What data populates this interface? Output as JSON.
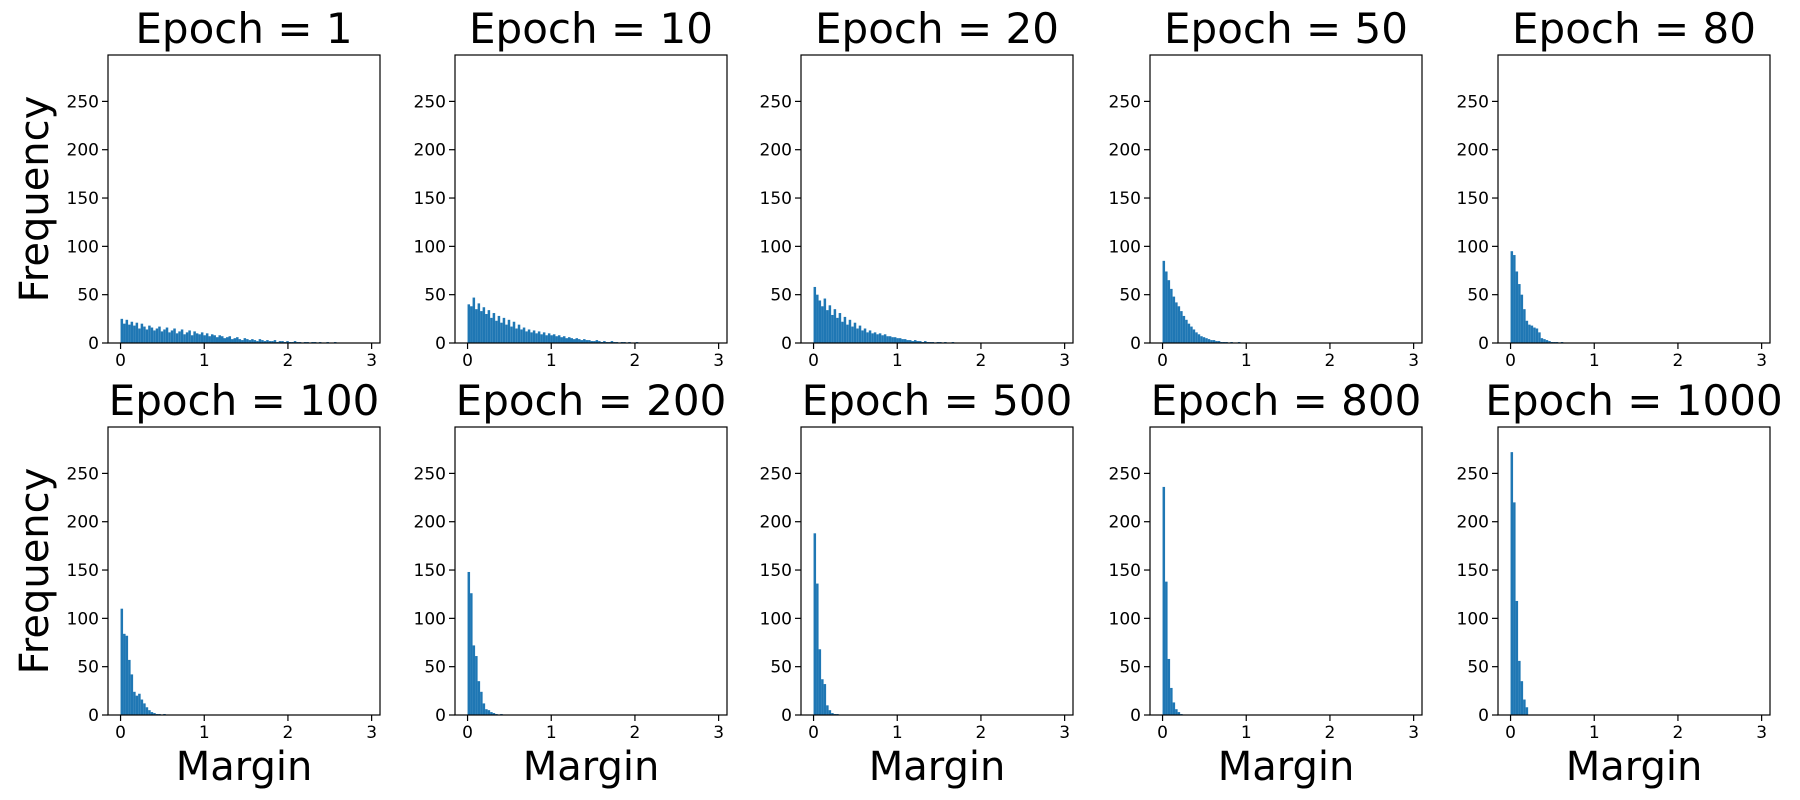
{
  "chart_data": {
    "type": "bar",
    "subtype": "histogram-grid",
    "colors": {
      "bars": "#1f77b4"
    },
    "grid": false,
    "layout": {
      "rows": 2,
      "cols": 5
    },
    "xlabel": "Margin",
    "ylabel": "Frequency",
    "xlim": [
      -0.15,
      3.1
    ],
    "ylim": [
      0,
      298
    ],
    "bin_width": 0.03,
    "xticks": [
      0,
      1,
      2,
      3
    ],
    "xtick_labels": [
      "0",
      "1",
      "2",
      "3"
    ],
    "yticks": [
      0,
      50,
      100,
      150,
      200,
      250
    ],
    "ytick_labels": [
      "0",
      "50",
      "100",
      "150",
      "200",
      "250"
    ],
    "panels": [
      {
        "title": "Epoch = 1",
        "bins_start": 0.0,
        "values": [
          25,
          20,
          24,
          19,
          22,
          18,
          21,
          15,
          20,
          17,
          14,
          18,
          16,
          13,
          15,
          17,
          12,
          14,
          16,
          11,
          13,
          15,
          10,
          12,
          14,
          9,
          11,
          13,
          8,
          12,
          10,
          9,
          11,
          8,
          10,
          7,
          9,
          8,
          6,
          8,
          7,
          5,
          6,
          7,
          4,
          5,
          6,
          4,
          3,
          5,
          4,
          3,
          4,
          3,
          2,
          4,
          3,
          2,
          3,
          2,
          2,
          3,
          1,
          2,
          2,
          1,
          2,
          1,
          1,
          2,
          1,
          1,
          0,
          1,
          1,
          0,
          1,
          1,
          0,
          1,
          0,
          0,
          1,
          0,
          0,
          1
        ]
      },
      {
        "title": "Epoch = 10",
        "bins_start": 0.0,
        "values": [
          40,
          38,
          47,
          35,
          41,
          33,
          37,
          30,
          34,
          26,
          31,
          23,
          28,
          21,
          26,
          19,
          24,
          17,
          22,
          15,
          19,
          14,
          16,
          12,
          14,
          11,
          13,
          10,
          12,
          9,
          11,
          8,
          10,
          8,
          9,
          7,
          8,
          6,
          7,
          5,
          6,
          5,
          4,
          5,
          4,
          3,
          4,
          3,
          3,
          2,
          2,
          3,
          2,
          1,
          2,
          1,
          1,
          2,
          1,
          1,
          0,
          1,
          1,
          0,
          1,
          0,
          0,
          1
        ]
      },
      {
        "title": "Epoch = 20",
        "bins_start": 0.0,
        "values": [
          58,
          50,
          44,
          38,
          46,
          34,
          39,
          29,
          35,
          26,
          31,
          22,
          27,
          19,
          24,
          17,
          21,
          15,
          18,
          13,
          15,
          11,
          13,
          10,
          11,
          9,
          10,
          8,
          9,
          7,
          7,
          6,
          6,
          5,
          5,
          4,
          4,
          3,
          3,
          2,
          3,
          2,
          2,
          1,
          2,
          1,
          1,
          1,
          0,
          1,
          1,
          0,
          1,
          0,
          0,
          1
        ]
      },
      {
        "title": "Epoch = 50",
        "bins_start": 0.0,
        "values": [
          85,
          74,
          65,
          56,
          48,
          42,
          38,
          33,
          28,
          24,
          20,
          17,
          14,
          11,
          9,
          7,
          6,
          5,
          4,
          3,
          3,
          2,
          2,
          1,
          1,
          1,
          0,
          1,
          0,
          0,
          1
        ]
      },
      {
        "title": "Epoch = 80",
        "bins_start": 0.0,
        "values": [
          95,
          91,
          74,
          61,
          50,
          35,
          23,
          19,
          18,
          16,
          15,
          11,
          5,
          4,
          3,
          2,
          1,
          1,
          1,
          0,
          1
        ]
      },
      {
        "title": "Epoch = 100",
        "bins_start": 0.0,
        "values": [
          110,
          84,
          82,
          57,
          42,
          24,
          20,
          22,
          16,
          12,
          8,
          5,
          3,
          2,
          1,
          1,
          0,
          1
        ]
      },
      {
        "title": "Epoch = 200",
        "bins_start": 0.0,
        "values": [
          148,
          126,
          72,
          61,
          35,
          24,
          12,
          6,
          5,
          3,
          2,
          1,
          0,
          1
        ]
      },
      {
        "title": "Epoch = 500",
        "bins_start": 0.0,
        "values": [
          188,
          136,
          68,
          37,
          32,
          10,
          5,
          2,
          1,
          1
        ]
      },
      {
        "title": "Epoch = 800",
        "bins_start": 0.0,
        "values": [
          236,
          138,
          58,
          28,
          13,
          6,
          3,
          1
        ]
      },
      {
        "title": "Epoch = 1000",
        "bins_start": 0.0,
        "values": [
          272,
          220,
          118,
          56,
          35,
          16,
          8
        ]
      }
    ]
  }
}
